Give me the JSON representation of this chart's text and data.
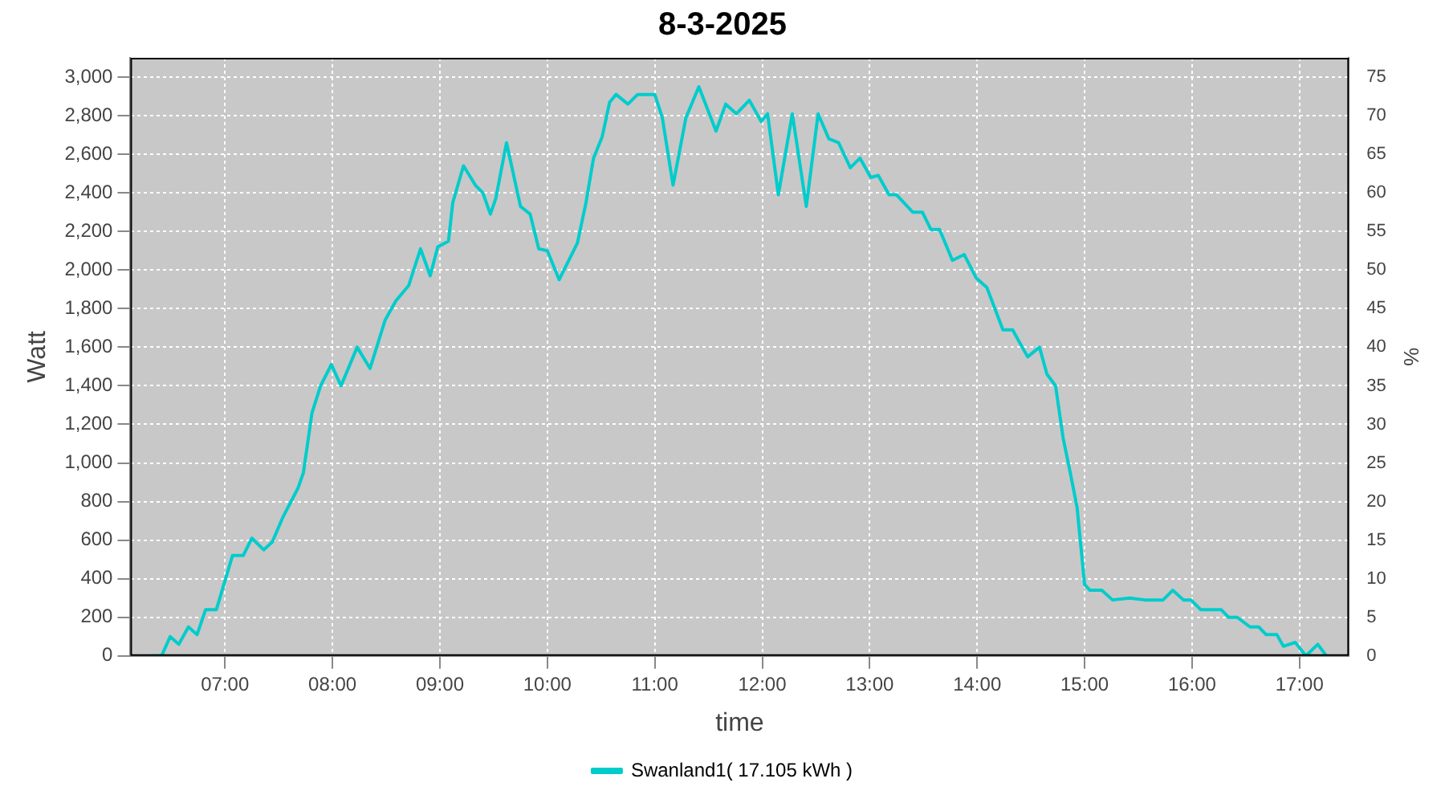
{
  "chart_data": {
    "type": "line",
    "title": "8-3-2025",
    "xlabel": "time",
    "ylabel": "Watt",
    "y2label": "%",
    "xlim": [
      6.12,
      17.46
    ],
    "xticks": [
      {
        "value": 7,
        "label": "07:00"
      },
      {
        "value": 8,
        "label": "08:00"
      },
      {
        "value": 9,
        "label": "09:00"
      },
      {
        "value": 10,
        "label": "10:00"
      },
      {
        "value": 11,
        "label": "11:00"
      },
      {
        "value": 12,
        "label": "12:00"
      },
      {
        "value": 13,
        "label": "13:00"
      },
      {
        "value": 14,
        "label": "14:00"
      },
      {
        "value": 15,
        "label": "15:00"
      },
      {
        "value": 16,
        "label": "16:00"
      },
      {
        "value": 17,
        "label": "17:00"
      }
    ],
    "ylim": [
      0,
      3100
    ],
    "yticks": [
      0,
      200,
      400,
      600,
      800,
      {
        "value": 1000,
        "label": "1,000"
      },
      {
        "value": 1200,
        "label": "1,200"
      },
      {
        "value": 1400,
        "label": "1,400"
      },
      {
        "value": 1600,
        "label": "1,600"
      },
      {
        "value": 1800,
        "label": "1,800"
      },
      {
        "value": 2000,
        "label": "2,000"
      },
      {
        "value": 2200,
        "label": "2,200"
      },
      {
        "value": 2400,
        "label": "2,400"
      },
      {
        "value": 2600,
        "label": "2,600"
      },
      {
        "value": 2800,
        "label": "2,800"
      },
      {
        "value": 3000,
        "label": "3,000"
      }
    ],
    "y2lim": [
      0,
      77.5
    ],
    "y2ticks": [
      0,
      5,
      10,
      15,
      20,
      25,
      30,
      35,
      40,
      45,
      50,
      55,
      60,
      65,
      70,
      75
    ],
    "grid": true,
    "legend": "bottom",
    "marker": "none",
    "line_style": "solid",
    "series": [
      {
        "name": "Swanland1( 17.105 kWh )",
        "color": "#00cccc",
        "x": [
          6.31,
          6.41,
          6.49,
          6.57,
          6.66,
          6.74,
          6.82,
          6.92,
          7.07,
          7.17,
          7.25,
          7.36,
          7.44,
          7.54,
          7.68,
          7.73,
          7.81,
          7.89,
          7.99,
          8.08,
          8.23,
          8.35,
          8.49,
          8.59,
          8.71,
          8.82,
          8.91,
          8.98,
          9.08,
          9.12,
          9.22,
          9.33,
          9.4,
          9.47,
          9.52,
          9.62,
          9.75,
          9.84,
          9.92,
          10.0,
          10.11,
          10.28,
          10.36,
          10.43,
          10.51,
          10.58,
          10.64,
          10.75,
          10.84,
          11.0,
          11.07,
          11.17,
          11.29,
          11.41,
          11.57,
          11.66,
          11.76,
          11.88,
          11.99,
          12.05,
          12.15,
          12.28,
          12.41,
          12.52,
          12.62,
          12.71,
          12.82,
          12.91,
          13.01,
          13.08,
          13.18,
          13.25,
          13.4,
          13.49,
          13.57,
          13.65,
          13.77,
          13.88,
          13.99,
          14.09,
          14.24,
          14.33,
          14.47,
          14.58,
          14.65,
          14.73,
          14.8,
          14.87,
          14.93,
          15.0,
          15.05,
          15.16,
          15.26,
          15.42,
          15.56,
          15.73,
          15.82,
          15.92,
          15.99,
          16.08,
          16.2,
          16.27,
          16.34,
          16.42,
          16.54,
          16.62,
          16.69,
          16.79,
          16.85,
          16.96,
          17.06,
          17.17,
          17.25
        ],
        "values": [
          0,
          0,
          100,
          60,
          150,
          110,
          240,
          240,
          520,
          520,
          610,
          550,
          590,
          720,
          870,
          950,
          1260,
          1400,
          1510,
          1400,
          1600,
          1490,
          1740,
          1840,
          1920,
          2110,
          1970,
          2120,
          2150,
          2350,
          2540,
          2440,
          2400,
          2290,
          2370,
          2660,
          2330,
          2290,
          2110,
          2100,
          1950,
          2140,
          2350,
          2580,
          2690,
          2870,
          2910,
          2860,
          2910,
          2910,
          2790,
          2440,
          2790,
          2950,
          2720,
          2860,
          2810,
          2880,
          2770,
          2810,
          2390,
          2810,
          2330,
          2810,
          2680,
          2660,
          2530,
          2580,
          2480,
          2490,
          2390,
          2390,
          2300,
          2300,
          2210,
          2210,
          2050,
          2080,
          1960,
          1910,
          1690,
          1690,
          1550,
          1600,
          1460,
          1400,
          1130,
          940,
          770,
          370,
          340,
          340,
          290,
          300,
          290,
          290,
          340,
          290,
          290,
          240,
          240,
          240,
          200,
          200,
          150,
          150,
          110,
          110,
          50,
          70,
          0,
          60,
          0
        ]
      }
    ]
  }
}
